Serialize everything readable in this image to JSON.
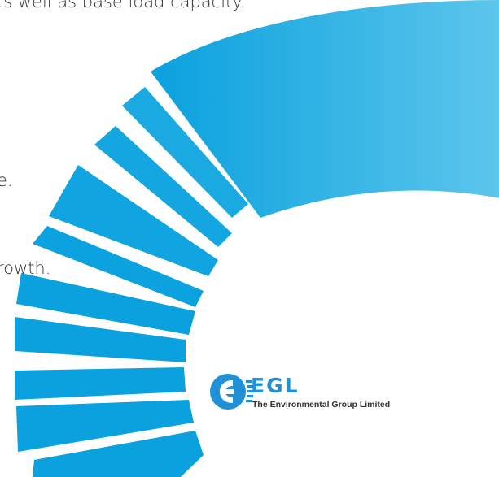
{
  "text": {
    "line1": "ts well as base load capacity.",
    "line2": "e.",
    "line3": "rowth."
  },
  "logo": {
    "name": "EGL",
    "tagline": "The Environmental Group Limited"
  },
  "colors": {
    "ring_light": "#5ec6ec",
    "ring_dark": "#0aa1de",
    "logo_blue": "#2091d6",
    "body_text": "#333333"
  }
}
